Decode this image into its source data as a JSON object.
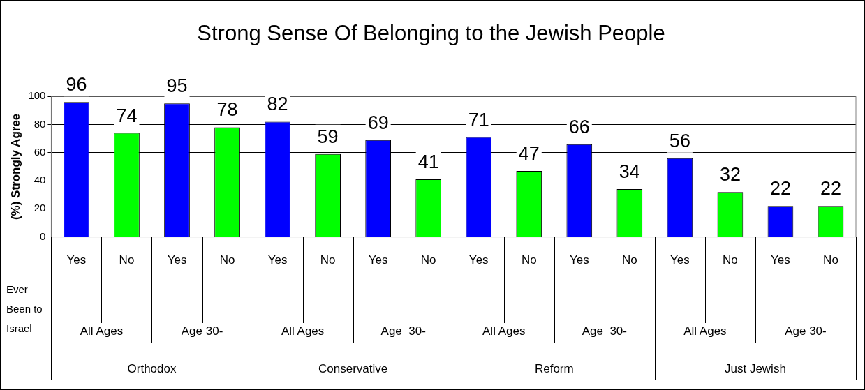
{
  "chart_data": {
    "type": "bar",
    "title": "Strong Sense Of Belonging to the Jewish People",
    "ylabel": "(%) Strongly Agree",
    "categories": [
      "Yes",
      "No",
      "Yes",
      "No",
      "Yes",
      "No",
      "Yes",
      "No",
      "Yes",
      "No",
      "Yes",
      "No",
      "Yes",
      "No",
      "Yes",
      "No"
    ],
    "values": [
      96,
      74,
      95,
      78,
      82,
      59,
      69,
      41,
      71,
      47,
      66,
      34,
      56,
      32,
      22,
      22
    ],
    "colors": [
      "#0000ff",
      "#00ff00",
      "#0000ff",
      "#00ff00",
      "#0000ff",
      "#00ff00",
      "#0000ff",
      "#00ff00",
      "#0000ff",
      "#00ff00",
      "#0000ff",
      "#00ff00",
      "#0000ff",
      "#00ff00",
      "#0000ff",
      "#00ff00"
    ],
    "annotations": [
      "Ever Been to Israel",
      "All Ages",
      "Age 30-",
      "All Ages",
      "Age  30-",
      "All Ages",
      "Age  30-",
      "All Ages",
      "Age 30-",
      "Orthodox",
      "Conservative",
      "Reform",
      "Just Jewish"
    ],
    "ylim": [
      0,
      100
    ],
    "yticks": [
      0,
      20,
      40,
      60,
      80,
      100
    ],
    "grid": "y",
    "data_labels": true,
    "legend": false
  }
}
